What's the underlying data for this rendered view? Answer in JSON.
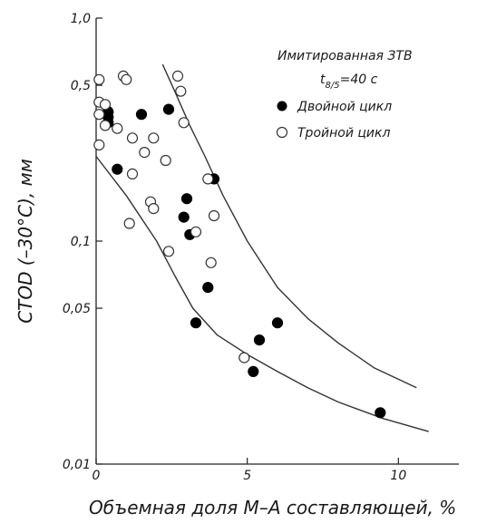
{
  "chart_data": {
    "type": "scatter",
    "xlabel": "Объемная доля М–А составляющей, %",
    "ylabel": "CTOD (–30°C), мм",
    "xlim": [
      0,
      12
    ],
    "ylim": [
      0.01,
      1.0
    ],
    "yscale": "log",
    "x_ticks": [
      {
        "v": 0,
        "label": "0"
      },
      {
        "v": 5,
        "label": "5"
      },
      {
        "v": 10,
        "label": "10"
      }
    ],
    "y_ticks": [
      {
        "v": 1.0,
        "label": "1,0"
      },
      {
        "v": 0.5,
        "label": "0,5"
      },
      {
        "v": 0.1,
        "label": "0,1"
      },
      {
        "v": 0.05,
        "label": "0,05"
      },
      {
        "v": 0.01,
        "label": "0,01"
      }
    ],
    "legend": {
      "title": "Имитированная ЗТВ",
      "subtitle_main": "t",
      "subtitle_sub": "8/5",
      "subtitle_rest": "=40 с",
      "placement": "top-right"
    },
    "series": [
      {
        "name": "Двойной цикл",
        "marker": "filled-circle",
        "points": [
          [
            0.4,
            0.38
          ],
          [
            0.4,
            0.36
          ],
          [
            0.4,
            0.34
          ],
          [
            0.7,
            0.21
          ],
          [
            1.5,
            0.37
          ],
          [
            2.4,
            0.39
          ],
          [
            3.0,
            0.155
          ],
          [
            2.9,
            0.128
          ],
          [
            3.1,
            0.107
          ],
          [
            3.9,
            0.19
          ],
          [
            3.7,
            0.062
          ],
          [
            3.3,
            0.043
          ],
          [
            6.0,
            0.043
          ],
          [
            5.4,
            0.036
          ],
          [
            5.2,
            0.026
          ],
          [
            9.4,
            0.017
          ]
        ]
      },
      {
        "name": "Тройной цикл",
        "marker": "open-circle",
        "points": [
          [
            0.1,
            0.53
          ],
          [
            0.1,
            0.42
          ],
          [
            0.1,
            0.37
          ],
          [
            0.3,
            0.41
          ],
          [
            0.3,
            0.33
          ],
          [
            0.1,
            0.27
          ],
          [
            0.7,
            0.32
          ],
          [
            0.9,
            0.55
          ],
          [
            1.0,
            0.53
          ],
          [
            1.2,
            0.29
          ],
          [
            1.6,
            0.25
          ],
          [
            1.9,
            0.29
          ],
          [
            2.3,
            0.23
          ],
          [
            1.2,
            0.2
          ],
          [
            1.8,
            0.15
          ],
          [
            1.9,
            0.14
          ],
          [
            1.1,
            0.12
          ],
          [
            2.7,
            0.55
          ],
          [
            2.8,
            0.47
          ],
          [
            2.9,
            0.34
          ],
          [
            3.7,
            0.19
          ],
          [
            3.9,
            0.13
          ],
          [
            3.3,
            0.11
          ],
          [
            2.4,
            0.09
          ],
          [
            3.8,
            0.08
          ],
          [
            4.9,
            0.03
          ]
        ]
      }
    ],
    "bounds": [
      {
        "name": "",
        "points": [
          [
            0,
            0.24
          ],
          [
            1,
            0.16
          ],
          [
            2,
            0.1
          ],
          [
            2.6,
            0.07
          ],
          [
            3.2,
            0.05
          ],
          [
            4,
            0.038
          ],
          [
            5,
            0.031
          ],
          [
            6,
            0.026
          ],
          [
            7,
            0.022
          ],
          [
            8,
            0.019
          ],
          [
            9.5,
            0.016
          ],
          [
            11,
            0.014
          ]
        ]
      },
      {
        "name": "",
        "points": [
          [
            2.2,
            0.62
          ],
          [
            2.6,
            0.47
          ],
          [
            3.1,
            0.33
          ],
          [
            3.6,
            0.24
          ],
          [
            4.2,
            0.16
          ],
          [
            5,
            0.1
          ],
          [
            6,
            0.062
          ],
          [
            7,
            0.045
          ],
          [
            8,
            0.035
          ],
          [
            9.2,
            0.027
          ],
          [
            10.6,
            0.022
          ]
        ]
      }
    ]
  }
}
